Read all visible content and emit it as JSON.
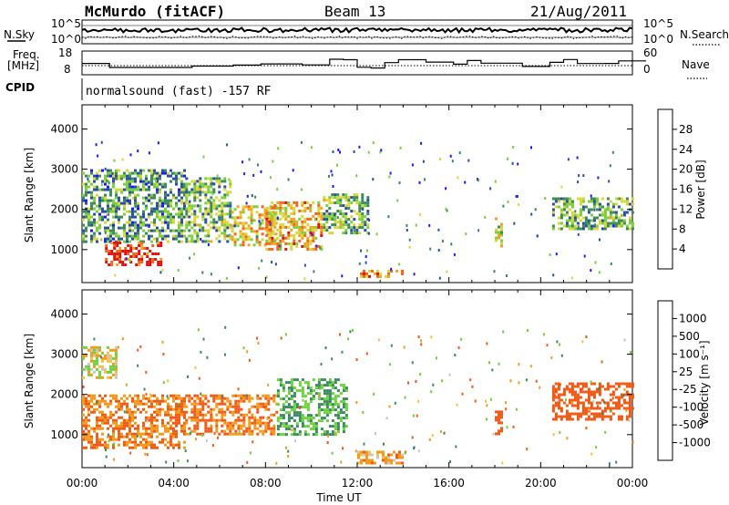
{
  "header": {
    "station": "McMurdo (fitACF)",
    "beam": "Beam 13",
    "date": "21/Aug/2011"
  },
  "noise_panel": {
    "left_label": "N.Sky",
    "right_label": "N.Search",
    "right_label_style": "dotted",
    "ticks": [
      "10^5",
      "10^0"
    ],
    "right_ticks": [
      "10^5",
      "10^0"
    ]
  },
  "freq_panel": {
    "left_label_line1": "Freq.",
    "left_label_line2": "[MHz]",
    "right_label": "Nave",
    "right_label_style": "dotted",
    "left_ticks": [
      "18",
      "8"
    ],
    "right_ticks": [
      "60",
      "0"
    ]
  },
  "cpid": {
    "label": "CPID",
    "text": "normalsound (fast) -157 RF"
  },
  "colors": {
    "power": [
      "#1a1aff",
      "#2b4fa8",
      "#3a8a5a",
      "#7ccf3a",
      "#d8d83a",
      "#f6a21e",
      "#f0661a",
      "#e01010"
    ],
    "velocity": [
      "#e81818",
      "#f05a14",
      "#f39a1a",
      "#f7c040",
      "#c8c8c0",
      "#6ed23c",
      "#3c8a64",
      "#2850b4",
      "#1a1aff"
    ]
  },
  "chart_data": [
    {
      "type": "heatmap",
      "title": "",
      "xlabel": "",
      "ylabel": "Slant Range [km]",
      "xlim": [
        "00:00",
        "24:00"
      ],
      "ylim": [
        180,
        4600
      ],
      "yticks": [
        "1000",
        "2000",
        "3000",
        "4000"
      ],
      "colorbar": {
        "label": "Power [dB]",
        "ticks": [
          "4",
          "8",
          "12",
          "16",
          "20",
          "24",
          "28"
        ],
        "range": [
          0,
          30
        ]
      },
      "echo_regions": [
        {
          "t_start": "00:00",
          "t_end": "04:30",
          "range_km": [
            1200,
            3000
          ],
          "value": 10
        },
        {
          "t_start": "01:00",
          "t_end": "03:30",
          "range_km": [
            600,
            1200
          ],
          "value": 28
        },
        {
          "t_start": "04:30",
          "t_end": "06:30",
          "range_km": [
            1200,
            2800
          ],
          "value": 12
        },
        {
          "t_start": "06:30",
          "t_end": "08:30",
          "range_km": [
            1100,
            2100
          ],
          "value": 18
        },
        {
          "t_start": "08:00",
          "t_end": "10:30",
          "range_km": [
            1000,
            2200
          ],
          "value": 20
        },
        {
          "t_start": "10:30",
          "t_end": "12:30",
          "range_km": [
            1400,
            2400
          ],
          "value": 12
        },
        {
          "t_start": "12:00",
          "t_end": "14:00",
          "range_km": [
            300,
            500
          ],
          "value": 22
        },
        {
          "t_start": "18:00",
          "t_end": "18:20",
          "range_km": [
            1100,
            1800
          ],
          "value": 16
        },
        {
          "t_start": "20:30",
          "t_end": "24:00",
          "range_km": [
            1500,
            2300
          ],
          "value": 12
        }
      ]
    },
    {
      "type": "heatmap",
      "title": "",
      "xlabel": "Time UT",
      "ylabel": "Slant Range [km]",
      "xlim": [
        "00:00",
        "24:00"
      ],
      "ylim": [
        180,
        4600
      ],
      "yticks": [
        "1000",
        "2000",
        "3000",
        "4000"
      ],
      "xticks": [
        "00:00",
        "04:00",
        "08:00",
        "12:00",
        "16:00",
        "20:00",
        "00:00"
      ],
      "colorbar": {
        "label": "Velocity [m s⁻¹]",
        "ticks": [
          "1000",
          "500",
          "100",
          "25",
          "-25",
          "-100",
          "-500",
          "-1000"
        ]
      },
      "echo_regions": [
        {
          "t_start": "00:00",
          "t_end": "01:30",
          "range_km": [
            2400,
            3200
          ],
          "value": 0
        },
        {
          "t_start": "00:00",
          "t_end": "04:30",
          "range_km": [
            700,
            2000
          ],
          "value": -100
        },
        {
          "t_start": "04:30",
          "t_end": "08:30",
          "range_km": [
            1000,
            2000
          ],
          "value": -100
        },
        {
          "t_start": "08:30",
          "t_end": "11:30",
          "range_km": [
            1000,
            2400
          ],
          "value": 100
        },
        {
          "t_start": "12:00",
          "t_end": "14:00",
          "range_km": [
            300,
            600
          ],
          "value": -50
        },
        {
          "t_start": "18:00",
          "t_end": "18:20",
          "range_km": [
            1000,
            1600
          ],
          "value": -300
        },
        {
          "t_start": "20:30",
          "t_end": "24:00",
          "range_km": [
            1400,
            2300
          ],
          "value": -300
        }
      ]
    }
  ]
}
